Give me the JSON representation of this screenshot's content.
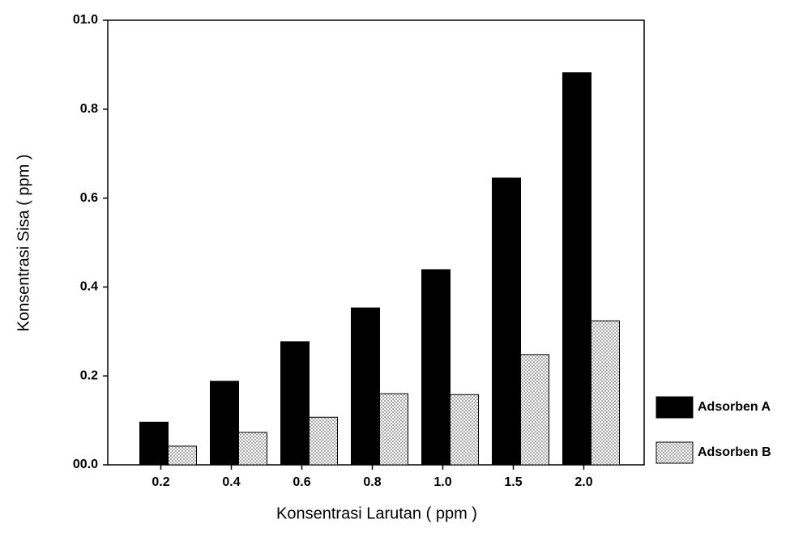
{
  "chart_data": {
    "type": "bar",
    "x_label": "Konsentrasi Larutan ( ppm )",
    "y_label": "Konsentrasi Sisa ( ppm )",
    "categories": [
      "0.2",
      "0.4",
      "0.6",
      "0.8",
      "1.0",
      "1.5",
      "2.0"
    ],
    "series": [
      {
        "name": "Adsorben A",
        "color": "#000000",
        "values": [
          0.096,
          0.188,
          0.277,
          0.353,
          0.439,
          0.645,
          0.882
        ]
      },
      {
        "name": "Adsorben B",
        "color": "#a8a8a8",
        "values": [
          0.042,
          0.073,
          0.107,
          0.16,
          0.158,
          0.248,
          0.324
        ]
      }
    ],
    "ylim": [
      0,
      1.0
    ],
    "yticks": [
      {
        "value": 0,
        "label": "00.0"
      },
      0.2,
      0.4,
      0.6,
      0.8,
      {
        "value": 1.0,
        "label": "01.0"
      }
    ],
    "grid": false,
    "legend": "right"
  }
}
